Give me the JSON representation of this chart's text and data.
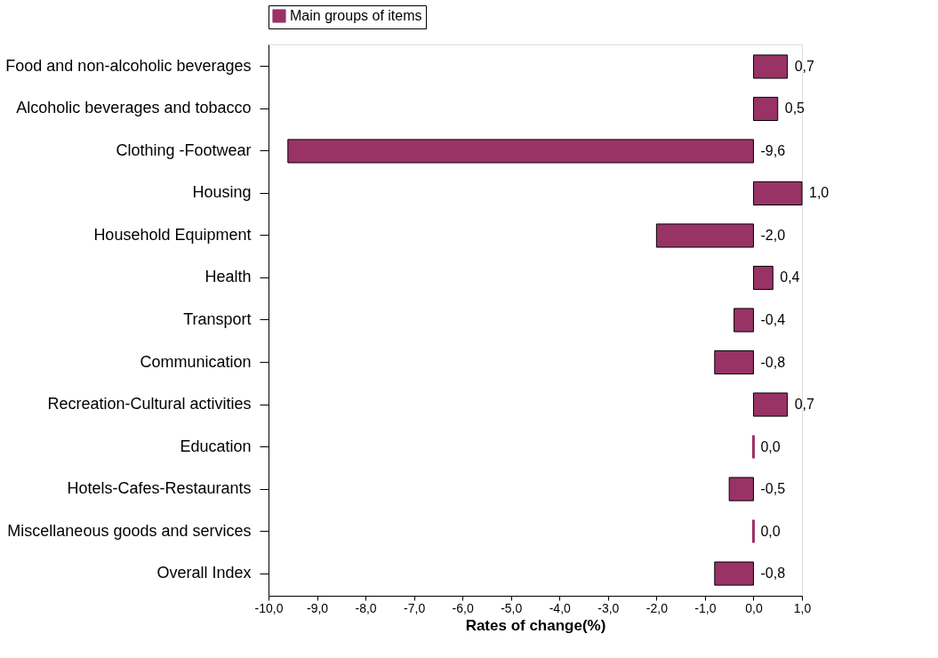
{
  "chart_data": {
    "type": "bar",
    "orientation": "horizontal",
    "xlabel": "Rates of change(%)",
    "categories": [
      "Food and non-alcoholic beverages",
      "Alcoholic beverages and tobacco",
      "Clothing -Footwear",
      "Housing",
      "Household Equipment",
      "Health",
      "Transport",
      "Communication",
      "Recreation-Cultural activities",
      "Education",
      "Hotels-Cafes-Restaurants",
      "Miscellaneous goods and services",
      "Overall Index"
    ],
    "series": [
      {
        "name": "Main groups of items",
        "color": "#993366",
        "values": [
          0.7,
          0.5,
          -9.6,
          1.0,
          -2.0,
          0.4,
          -0.4,
          -0.8,
          0.7,
          0.0,
          -0.5,
          0.0,
          -0.8
        ],
        "value_labels": [
          "0,7",
          "0,5",
          "-9,6",
          "1,0",
          "-2,0",
          "0,4",
          "-0,4",
          "-0,8",
          "0,7",
          "0,0",
          "-0,5",
          "0,0",
          "-0,8"
        ]
      }
    ],
    "xlim": [
      -10,
      1
    ],
    "xticks": [
      {
        "value": -10,
        "label": "-10,0"
      },
      {
        "value": -9,
        "label": "-9,0"
      },
      {
        "value": -8,
        "label": "-8,0"
      },
      {
        "value": -7,
        "label": "-7,0"
      },
      {
        "value": -6,
        "label": "-6,0"
      },
      {
        "value": -5,
        "label": "-5,0"
      },
      {
        "value": -4,
        "label": "-4,0"
      },
      {
        "value": -3,
        "label": "-3,0"
      },
      {
        "value": -2,
        "label": "-2,0"
      },
      {
        "value": -1,
        "label": "-1,0"
      },
      {
        "value": 0,
        "label": "0,0"
      },
      {
        "value": 1,
        "label": "1,0"
      }
    ],
    "legend": "top",
    "grid": false
  }
}
